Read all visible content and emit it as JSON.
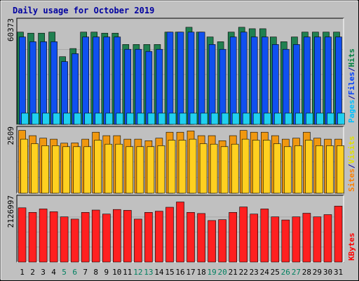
{
  "chart_data": {
    "type": "bar",
    "title": "Daily usage for October 2019",
    "categories": [
      "1",
      "2",
      "3",
      "4",
      "5",
      "6",
      "7",
      "8",
      "9",
      "10",
      "11",
      "12",
      "13",
      "14",
      "15",
      "16",
      "17",
      "18",
      "19",
      "20",
      "21",
      "22",
      "23",
      "24",
      "25",
      "26",
      "27",
      "28",
      "29",
      "30",
      "31"
    ],
    "weekend_days": [
      "5",
      "6",
      "12",
      "13",
      "19",
      "20",
      "26",
      "27"
    ],
    "panels": [
      {
        "id": "hits-files-pages",
        "max_label": "60373",
        "ymax": 60373,
        "legend": [
          {
            "label": "Pages",
            "color": "#00c0ff"
          },
          {
            "label": "/",
            "color": "#0000a0"
          },
          {
            "label": "Files",
            "color": "#0040ff"
          },
          {
            "label": "/",
            "color": "#0000a0"
          },
          {
            "label": "Hits",
            "color": "#008040"
          }
        ],
        "series": [
          {
            "name": "Hits",
            "color": "#208050",
            "values": [
              55860,
              55200,
              55200,
              55860,
              40950,
              45900,
              55860,
              55860,
              55200,
              55200,
              48360,
              48360,
              48360,
              48360,
              55860,
              55860,
              58800,
              55860,
              52920,
              50010,
              55860,
              58800,
              57900,
              57900,
              52920,
              50010,
              52920,
              55860,
              55860,
              55860,
              55860
            ]
          },
          {
            "name": "Files",
            "color": "#1050f0",
            "values": [
              52920,
              50010,
              50010,
              50010,
              38000,
              42800,
              52920,
              52920,
              52920,
              52920,
              45420,
              45420,
              44130,
              45420,
              55860,
              55860,
              55860,
              55860,
              48360,
              45420,
              52920,
              55860,
              52920,
              52920,
              48360,
              45420,
              48360,
              52920,
              52920,
              52920,
              52920
            ]
          },
          {
            "name": "Pages",
            "color": "#20d0f0",
            "values": [
              6800,
              6800,
              6800,
              6800,
              6800,
              6800,
              6800,
              6800,
              6800,
              6800,
              6800,
              6800,
              6800,
              6800,
              6800,
              6800,
              6800,
              6800,
              6800,
              6800,
              6800,
              6800,
              6800,
              6800,
              6800,
              6800,
              6800,
              6800,
              6800,
              6800,
              6800
            ]
          }
        ]
      },
      {
        "id": "visits-sites",
        "max_label": "2509",
        "ymax": 2509,
        "legend": [
          {
            "label": "Sites",
            "color": "#ff8000"
          },
          {
            "label": "/",
            "color": "#0000a0"
          },
          {
            "label": "Visits",
            "color": "#e0e000"
          }
        ],
        "series": [
          {
            "name": "Visits",
            "color": "#f09810",
            "values": [
              2509,
              2300,
              2200,
              2160,
              2000,
              2009,
              2160,
              2440,
              2300,
              2300,
              2160,
              2160,
              2100,
              2200,
              2440,
              2440,
              2490,
              2300,
              2300,
              2100,
              2300,
              2509,
              2440,
              2440,
              2300,
              2160,
              2200,
              2440,
              2200,
              2160,
              2160
            ]
          },
          {
            "name": "Sites",
            "color": "#ffd020",
            "values": [
              2160,
              1980,
              1900,
              1900,
              1860,
              1860,
              1860,
              2120,
              1960,
              1960,
              1860,
              1860,
              1860,
              1900,
              2120,
              2120,
              2160,
              1980,
              1960,
              1860,
              1960,
              2160,
              2120,
              2120,
              1980,
              1860,
              1900,
              2120,
              1900,
              1900,
              1900
            ]
          }
        ]
      },
      {
        "id": "kbytes",
        "max_label": "2126997",
        "ymax": 2126997,
        "legend": [
          {
            "label": "KBytes",
            "color": "#ff0000"
          }
        ],
        "series": [
          {
            "name": "KBytes",
            "color": "#ff2020",
            "values": [
              1920000,
              1760000,
              1880000,
              1780000,
              1600000,
              1520000,
              1760000,
              1840000,
              1700000,
              1860000,
              1830000,
              1520000,
              1760000,
              1800000,
              1940000,
              2126997,
              1760000,
              1720000,
              1470000,
              1500000,
              1760000,
              1950000,
              1700000,
              1880000,
              1600000,
              1490000,
              1600000,
              1730000,
              1600000,
              1680000,
              1980000
            ]
          }
        ]
      }
    ]
  }
}
